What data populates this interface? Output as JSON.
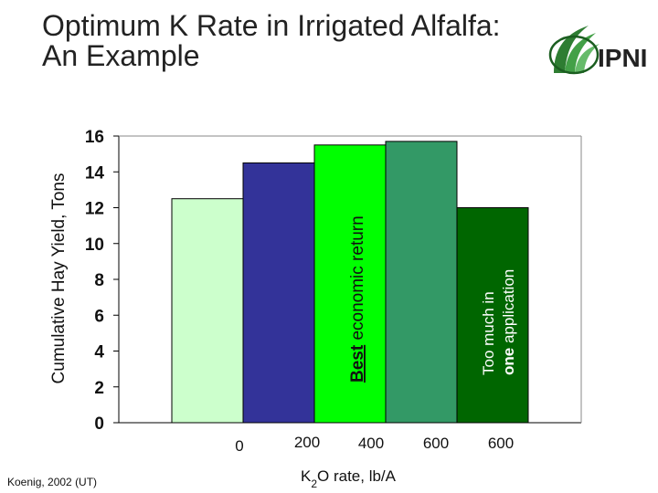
{
  "title_line1": "Optimum K Rate in Irrigated Alfalfa:",
  "title_line2": "An Example",
  "logo": {
    "text": "IPNI",
    "icon": "grass-swoosh-icon"
  },
  "citation": "Koenig, 2002 (UT)",
  "chart_data": {
    "type": "bar",
    "ylabel": "Cumulative Hay Yield, Tons",
    "xlabel_parts": {
      "base": "K",
      "sub": "2",
      "rest": "O rate, lb/A"
    },
    "ylim": [
      0,
      16
    ],
    "yticks": [
      0,
      2,
      4,
      6,
      8,
      10,
      12,
      14,
      16
    ],
    "grid": false,
    "categories": [
      "0",
      "200",
      "400",
      "600",
      "600"
    ],
    "values": [
      12.5,
      14.5,
      15.5,
      15.7,
      12.0
    ],
    "colors": [
      "#ccffcc",
      "#333399",
      "#00ff00",
      "#339966",
      "#006600"
    ],
    "annotations": [
      {
        "bar": 2,
        "bold_text": "Best",
        "text": " economic return"
      },
      {
        "bar": 4,
        "line1": "Too much in",
        "line2_bold": "one",
        "line2_rest": " application"
      }
    ]
  }
}
